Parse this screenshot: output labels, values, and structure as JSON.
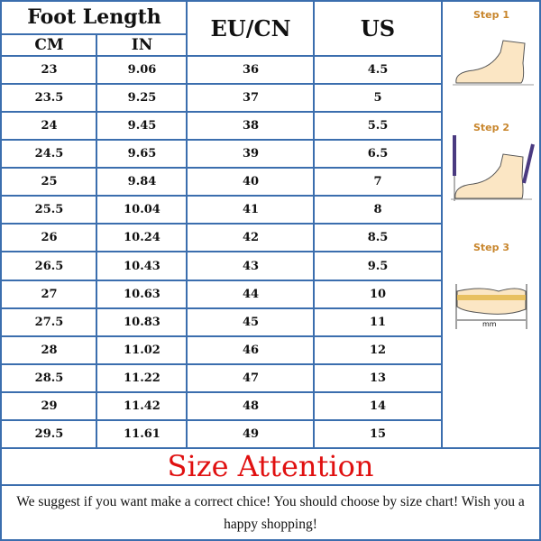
{
  "header": {
    "foot_length": "Foot Length",
    "cm": "CM",
    "in": "IN",
    "eu_cn": "EU/CN",
    "us": "US"
  },
  "rows": [
    {
      "cm": "23",
      "in": "9.06",
      "eu": "36",
      "us": "4.5"
    },
    {
      "cm": "23.5",
      "in": "9.25",
      "eu": "37",
      "us": "5"
    },
    {
      "cm": "24",
      "in": "9.45",
      "eu": "38",
      "us": "5.5"
    },
    {
      "cm": "24.5",
      "in": "9.65",
      "eu": "39",
      "us": "6.5"
    },
    {
      "cm": "25",
      "in": "9.84",
      "eu": "40",
      "us": "7"
    },
    {
      "cm": "25.5",
      "in": "10.04",
      "eu": "41",
      "us": "8"
    },
    {
      "cm": "26",
      "in": "10.24",
      "eu": "42",
      "us": "8.5"
    },
    {
      "cm": "26.5",
      "in": "10.43",
      "eu": "43",
      "us": "9.5"
    },
    {
      "cm": "27",
      "in": "10.63",
      "eu": "44",
      "us": "10"
    },
    {
      "cm": "27.5",
      "in": "10.83",
      "eu": "45",
      "us": "11"
    },
    {
      "cm": "28",
      "in": "11.02",
      "eu": "46",
      "us": "12"
    },
    {
      "cm": "28.5",
      "in": "11.22",
      "eu": "47",
      "us": "13"
    },
    {
      "cm": "29",
      "in": "11.42",
      "eu": "48",
      "us": "14"
    },
    {
      "cm": "29.5",
      "in": "11.61",
      "eu": "49",
      "us": "15"
    }
  ],
  "steps": [
    {
      "label": "Step 1"
    },
    {
      "label": "Step 2"
    },
    {
      "label": "Step 3"
    }
  ],
  "step3_unit": "mm",
  "attention": "Size Attention",
  "note": "We suggest if you want make a correct chice! You should choose by size chart! Wish you a happy shopping!",
  "colors": {
    "border": "#3b6eae",
    "attention": "#e01010",
    "step": "#c8862d",
    "foot": "#fbe6c4"
  }
}
